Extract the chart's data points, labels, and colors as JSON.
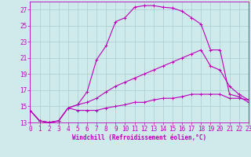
{
  "xlabel": "Windchill (Refroidissement éolien,°C)",
  "bg_color": "#ceeaea",
  "grid_color": "#a8cccc",
  "line_color": "#bb00bb",
  "xmin": 0,
  "xmax": 23,
  "ymin": 13,
  "ymax": 28,
  "series": [
    [
      14.5,
      13.2,
      13.0,
      13.2,
      14.8,
      15.2,
      16.8,
      20.8,
      22.5,
      25.5,
      26.0,
      27.3,
      27.5,
      27.5,
      27.3,
      27.2,
      26.8,
      26.0,
      25.2,
      22.0,
      22.0,
      16.5,
      16.2,
      15.5
    ],
    [
      14.5,
      13.2,
      13.0,
      13.2,
      14.8,
      15.2,
      15.5,
      16.0,
      16.8,
      17.5,
      18.0,
      18.5,
      19.0,
      19.5,
      20.0,
      20.5,
      21.0,
      21.5,
      22.0,
      20.0,
      19.5,
      17.5,
      16.5,
      15.8
    ],
    [
      14.5,
      13.2,
      13.0,
      13.2,
      14.8,
      14.5,
      14.5,
      14.5,
      14.8,
      15.0,
      15.2,
      15.5,
      15.5,
      15.8,
      16.0,
      16.0,
      16.2,
      16.5,
      16.5,
      16.5,
      16.5,
      16.0,
      16.0,
      15.8
    ]
  ],
  "yticks": [
    13,
    15,
    17,
    19,
    21,
    23,
    25,
    27
  ],
  "xticks": [
    0,
    1,
    2,
    3,
    4,
    5,
    6,
    7,
    8,
    9,
    10,
    11,
    12,
    13,
    14,
    15,
    16,
    17,
    18,
    19,
    20,
    21,
    22,
    23
  ],
  "tick_fontsize": 5.5,
  "xlabel_fontsize": 5.5
}
